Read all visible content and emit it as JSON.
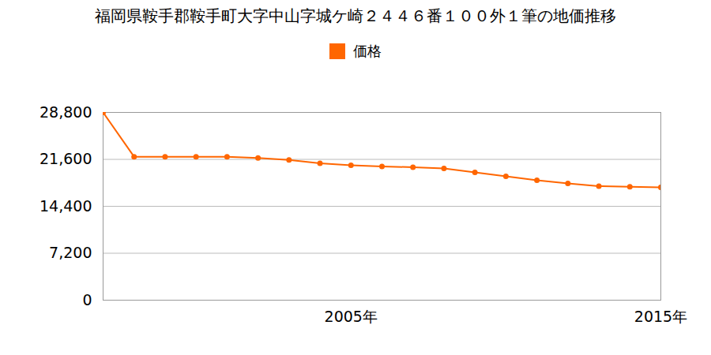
{
  "chart_data": {
    "type": "line",
    "title": "福岡県鞍手郡鞍手町大字中山字城ケ崎２４４６番１００外１筆の地価推移",
    "x": [
      1997,
      1998,
      1999,
      2000,
      2001,
      2002,
      2003,
      2004,
      2005,
      2006,
      2007,
      2008,
      2009,
      2010,
      2011,
      2012,
      2013,
      2014,
      2015
    ],
    "series": [
      {
        "name": "価格",
        "color": "#ff6600",
        "marker": "circle",
        "values": [
          28800,
          22000,
          22000,
          22000,
          22000,
          21800,
          21500,
          21000,
          20700,
          20500,
          20400,
          20200,
          19600,
          19000,
          18400,
          17900,
          17500,
          17400,
          17300
        ]
      }
    ],
    "xlim": [
      1997,
      2015
    ],
    "xticks": [
      {
        "value": 2005,
        "label": "2005年"
      },
      {
        "value": 2015,
        "label": "2015年"
      }
    ],
    "ylim": [
      0,
      28800
    ],
    "yticks": [
      0,
      {
        "value": 7200,
        "label": "7,200"
      },
      {
        "value": 14400,
        "label": "14,400"
      },
      {
        "value": 21600,
        "label": "21,600"
      },
      {
        "value": 28800,
        "label": "28,800"
      }
    ],
    "grid": true,
    "legend": "top"
  }
}
